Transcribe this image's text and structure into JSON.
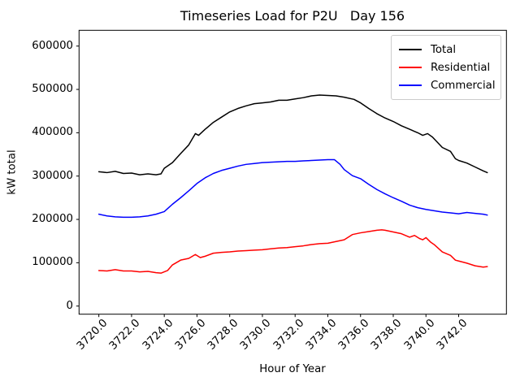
{
  "figure": {
    "background": "#ffffff"
  },
  "chart_data": {
    "type": "line",
    "title": "Timeseries Load for P2U   Day 156",
    "xlabel": "Hour of Year",
    "ylabel": "kW total",
    "xlim": [
      3718.79,
      3744.92
    ],
    "ylim": [
      -18750,
      636400
    ],
    "grid": false,
    "xticks": {
      "values": [
        3720,
        3722,
        3724,
        3726,
        3728,
        3730,
        3732,
        3734,
        3736,
        3738,
        3740,
        3742
      ],
      "labels": [
        "3720.0",
        "3722.0",
        "3724.0",
        "3726.0",
        "3728.0",
        "3730.0",
        "3732.0",
        "3734.0",
        "3736.0",
        "3738.0",
        "3740.0",
        "3742.0"
      ]
    },
    "yticks": {
      "values": [
        0,
        100000,
        200000,
        300000,
        400000,
        500000,
        600000
      ],
      "labels": [
        "0",
        "100000",
        "200000",
        "300000",
        "400000",
        "500000",
        "600000"
      ]
    },
    "legend": {
      "position": "upper right",
      "edge_color": "#cccccc",
      "entries": [
        {
          "label": "Total",
          "color": "#000000"
        },
        {
          "label": "Residential",
          "color": "#ff0000"
        },
        {
          "label": "Commercial",
          "color": "#0000ff"
        }
      ]
    },
    "series": [
      {
        "name": "Total",
        "color": "#000000",
        "points": [
          [
            3720.0,
            310000
          ],
          [
            3720.5,
            308000
          ],
          [
            3721.0,
            311000
          ],
          [
            3721.5,
            306000
          ],
          [
            3722.0,
            307000
          ],
          [
            3722.5,
            303000
          ],
          [
            3723.0,
            305000
          ],
          [
            3723.5,
            303000
          ],
          [
            3723.8,
            305000
          ],
          [
            3724.0,
            318000
          ],
          [
            3724.5,
            331000
          ],
          [
            3725.0,
            352000
          ],
          [
            3725.5,
            372000
          ],
          [
            3725.9,
            398000
          ],
          [
            3726.1,
            394000
          ],
          [
            3726.5,
            408000
          ],
          [
            3727.0,
            424000
          ],
          [
            3727.5,
            436000
          ],
          [
            3728.0,
            448000
          ],
          [
            3728.5,
            456000
          ],
          [
            3729.0,
            462000
          ],
          [
            3729.5,
            467000
          ],
          [
            3730.0,
            469000
          ],
          [
            3730.5,
            471000
          ],
          [
            3731.0,
            475000
          ],
          [
            3731.5,
            475000
          ],
          [
            3732.0,
            478000
          ],
          [
            3732.5,
            481000
          ],
          [
            3733.0,
            485000
          ],
          [
            3733.5,
            487000
          ],
          [
            3734.0,
            486000
          ],
          [
            3734.5,
            485000
          ],
          [
            3735.0,
            482000
          ],
          [
            3735.6,
            477000
          ],
          [
            3736.0,
            469000
          ],
          [
            3736.5,
            456000
          ],
          [
            3737.0,
            444000
          ],
          [
            3737.5,
            434000
          ],
          [
            3738.0,
            426000
          ],
          [
            3738.5,
            416000
          ],
          [
            3739.0,
            408000
          ],
          [
            3739.5,
            400000
          ],
          [
            3739.8,
            394000
          ],
          [
            3740.1,
            398000
          ],
          [
            3740.4,
            390000
          ],
          [
            3740.7,
            378000
          ],
          [
            3741.0,
            366000
          ],
          [
            3741.5,
            357000
          ],
          [
            3741.8,
            340000
          ],
          [
            3742.0,
            336000
          ],
          [
            3742.5,
            330000
          ],
          [
            3743.0,
            321000
          ],
          [
            3743.5,
            312000
          ],
          [
            3743.75,
            308000
          ]
        ]
      },
      {
        "name": "Residential",
        "color": "#ff0000",
        "points": [
          [
            3720.0,
            82000
          ],
          [
            3720.5,
            81000
          ],
          [
            3721.0,
            84000
          ],
          [
            3721.5,
            81000
          ],
          [
            3722.0,
            81000
          ],
          [
            3722.5,
            79000
          ],
          [
            3723.0,
            80000
          ],
          [
            3723.5,
            77000
          ],
          [
            3723.8,
            76000
          ],
          [
            3724.2,
            82000
          ],
          [
            3724.5,
            95000
          ],
          [
            3725.0,
            106000
          ],
          [
            3725.5,
            110000
          ],
          [
            3725.9,
            119000
          ],
          [
            3726.2,
            112000
          ],
          [
            3726.5,
            115000
          ],
          [
            3727.0,
            122000
          ],
          [
            3727.5,
            124000
          ],
          [
            3728.0,
            125000
          ],
          [
            3728.5,
            127000
          ],
          [
            3729.0,
            128000
          ],
          [
            3729.5,
            129000
          ],
          [
            3730.0,
            130000
          ],
          [
            3730.5,
            132000
          ],
          [
            3731.0,
            134000
          ],
          [
            3731.5,
            135000
          ],
          [
            3732.0,
            137000
          ],
          [
            3732.5,
            139000
          ],
          [
            3733.0,
            142000
          ],
          [
            3733.5,
            144000
          ],
          [
            3734.0,
            145000
          ],
          [
            3734.5,
            149000
          ],
          [
            3735.0,
            153000
          ],
          [
            3735.5,
            165000
          ],
          [
            3736.0,
            169000
          ],
          [
            3736.5,
            172000
          ],
          [
            3737.0,
            175000
          ],
          [
            3737.3,
            176000
          ],
          [
            3737.5,
            175000
          ],
          [
            3738.0,
            171000
          ],
          [
            3738.5,
            167000
          ],
          [
            3739.0,
            159000
          ],
          [
            3739.3,
            163000
          ],
          [
            3739.6,
            156000
          ],
          [
            3739.8,
            153000
          ],
          [
            3740.0,
            158000
          ],
          [
            3740.3,
            147000
          ],
          [
            3740.5,
            142000
          ],
          [
            3741.0,
            125000
          ],
          [
            3741.5,
            117000
          ],
          [
            3741.8,
            106000
          ],
          [
            3742.0,
            104000
          ],
          [
            3742.5,
            99000
          ],
          [
            3743.0,
            93000
          ],
          [
            3743.5,
            90000
          ],
          [
            3743.75,
            91000
          ]
        ]
      },
      {
        "name": "Commercial",
        "color": "#0000ff",
        "points": [
          [
            3720.0,
            212000
          ],
          [
            3720.5,
            208000
          ],
          [
            3721.0,
            206000
          ],
          [
            3721.5,
            205000
          ],
          [
            3722.0,
            205000
          ],
          [
            3722.5,
            206000
          ],
          [
            3723.0,
            208000
          ],
          [
            3723.5,
            212000
          ],
          [
            3724.0,
            218000
          ],
          [
            3724.5,
            235000
          ],
          [
            3725.0,
            250000
          ],
          [
            3725.5,
            266000
          ],
          [
            3726.0,
            283000
          ],
          [
            3726.5,
            296000
          ],
          [
            3727.0,
            306000
          ],
          [
            3727.5,
            313000
          ],
          [
            3728.0,
            318000
          ],
          [
            3728.5,
            323000
          ],
          [
            3729.0,
            327000
          ],
          [
            3729.5,
            329000
          ],
          [
            3730.0,
            331000
          ],
          [
            3730.5,
            332000
          ],
          [
            3731.0,
            333000
          ],
          [
            3731.5,
            334000
          ],
          [
            3732.0,
            334000
          ],
          [
            3732.5,
            335000
          ],
          [
            3733.0,
            336000
          ],
          [
            3733.5,
            337000
          ],
          [
            3734.0,
            338000
          ],
          [
            3734.4,
            338000
          ],
          [
            3734.75,
            327000
          ],
          [
            3735.0,
            315000
          ],
          [
            3735.5,
            301000
          ],
          [
            3736.0,
            294000
          ],
          [
            3736.5,
            281000
          ],
          [
            3737.0,
            269000
          ],
          [
            3737.5,
            259000
          ],
          [
            3738.0,
            250000
          ],
          [
            3738.5,
            242000
          ],
          [
            3739.0,
            233000
          ],
          [
            3739.5,
            227000
          ],
          [
            3740.0,
            223000
          ],
          [
            3740.5,
            220000
          ],
          [
            3741.0,
            217000
          ],
          [
            3741.5,
            215000
          ],
          [
            3742.0,
            213000
          ],
          [
            3742.5,
            216000
          ],
          [
            3743.0,
            214000
          ],
          [
            3743.5,
            212000
          ],
          [
            3743.75,
            210000
          ]
        ]
      }
    ]
  }
}
